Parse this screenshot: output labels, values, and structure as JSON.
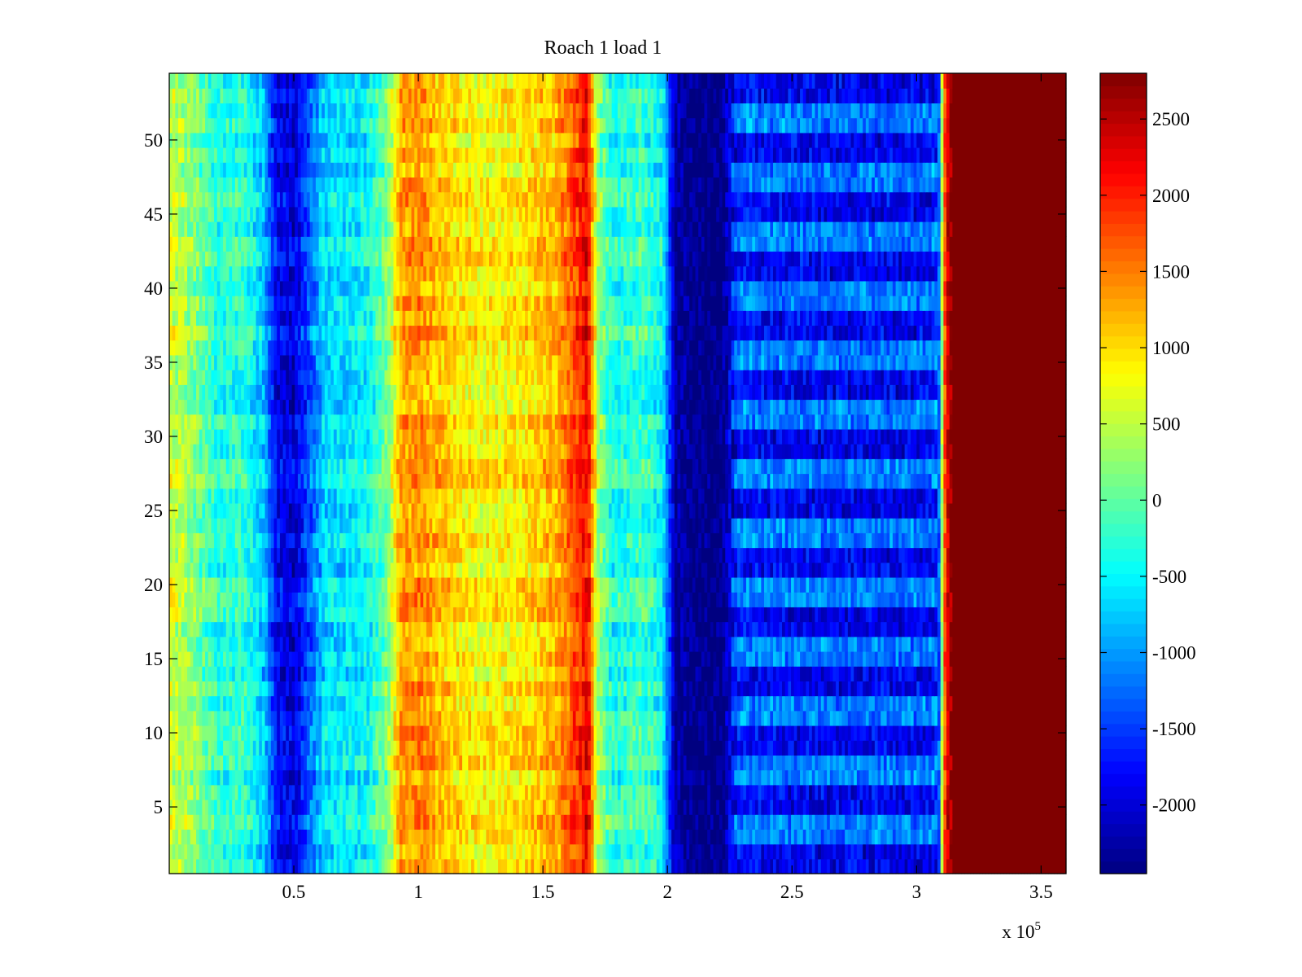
{
  "chart_data": {
    "type": "heatmap",
    "title": "Roach 1 load 1",
    "xlabel": "",
    "ylabel": "",
    "x_exponent_label": {
      "base": "x 10",
      "exponent": "5"
    },
    "xlim": [
      0,
      3.6
    ],
    "x_multiplier": 100000,
    "ylim": [
      0.5,
      54.5
    ],
    "x_ticks": [
      0.5,
      1,
      1.5,
      2,
      2.5,
      3,
      3.5
    ],
    "x_tick_labels": [
      "0.5",
      "1",
      "1.5",
      "2",
      "2.5",
      "3",
      "3.5"
    ],
    "y_ticks": [
      5,
      10,
      15,
      20,
      25,
      30,
      35,
      40,
      45,
      50
    ],
    "y_tick_labels": [
      "5",
      "10",
      "15",
      "20",
      "25",
      "30",
      "35",
      "40",
      "45",
      "50"
    ],
    "rows": 54,
    "colormap": "jet",
    "clim": [
      -2450,
      2800
    ],
    "colorbar": {
      "ticks": [
        -2000,
        -1500,
        -1000,
        -500,
        0,
        500,
        1000,
        1500,
        2000,
        2500
      ],
      "tick_labels": [
        "-2000",
        "-1500",
        "-1000",
        "-500",
        "0",
        "500",
        "1000",
        "1500",
        "2000",
        "2500"
      ]
    },
    "column_profile": [
      {
        "x": 0.0,
        "value": 600
      },
      {
        "x": 0.1,
        "value": 200
      },
      {
        "x": 0.2,
        "value": -350
      },
      {
        "x": 0.3,
        "value": -250
      },
      {
        "x": 0.38,
        "value": -800
      },
      {
        "x": 0.43,
        "value": -1800
      },
      {
        "x": 0.5,
        "value": -2000
      },
      {
        "x": 0.55,
        "value": -1500
      },
      {
        "x": 0.62,
        "value": -700
      },
      {
        "x": 0.7,
        "value": -600
      },
      {
        "x": 0.8,
        "value": -500
      },
      {
        "x": 0.88,
        "value": 200
      },
      {
        "x": 0.93,
        "value": 1300
      },
      {
        "x": 1.0,
        "value": 1400
      },
      {
        "x": 1.1,
        "value": 1100
      },
      {
        "x": 1.25,
        "value": 800
      },
      {
        "x": 1.4,
        "value": 900
      },
      {
        "x": 1.55,
        "value": 1200
      },
      {
        "x": 1.65,
        "value": 1900
      },
      {
        "x": 1.68,
        "value": 2200
      },
      {
        "x": 1.72,
        "value": 300
      },
      {
        "x": 1.78,
        "value": -400
      },
      {
        "x": 1.9,
        "value": -200
      },
      {
        "x": 1.98,
        "value": -500
      },
      {
        "x": 2.03,
        "value": -2200
      },
      {
        "x": 2.1,
        "value": -2450
      },
      {
        "x": 2.22,
        "value": -2450
      },
      {
        "x": 2.28,
        "value": -1400
      },
      {
        "x": 2.6,
        "value": -1500
      },
      {
        "x": 3.05,
        "value": -1500
      },
      {
        "x": 3.09,
        "value": -1300
      },
      {
        "x": 3.11,
        "value": 1500
      },
      {
        "x": 3.13,
        "value": 2600
      },
      {
        "x": 3.15,
        "value": 2800
      },
      {
        "x": 3.6,
        "value": 2800
      }
    ]
  }
}
